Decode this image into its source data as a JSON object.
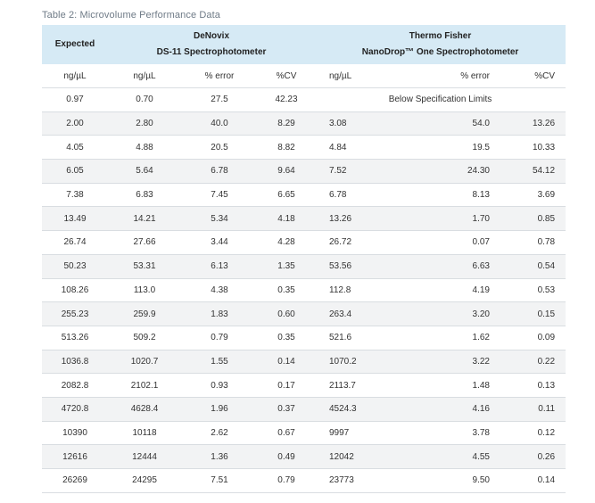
{
  "caption": "Table 2: Microvolume Performance Data",
  "header": {
    "expected": "Expected",
    "denovix_line1": "DeNovix",
    "denovix_line2": "DS-11 Spectrophotometer",
    "thermo_line1": "Thermo Fisher",
    "thermo_line2": "NanoDrop™ One Spectrophotometer"
  },
  "units": [
    "ng/µL",
    "ng/µL",
    "% error",
    "%CV",
    "ng/µL",
    "% error",
    "%CV"
  ],
  "below_spec_text": "Below Specification Limits",
  "rows": [
    {
      "expected": "0.97",
      "dn_ngul": "0.70",
      "dn_err": "27.5",
      "dn_cv": "42.23",
      "below_spec": true
    },
    {
      "expected": "2.00",
      "dn_ngul": "2.80",
      "dn_err": "40.0",
      "dn_cv": "8.29",
      "tf_ngul": "3.08",
      "tf_err": "54.0",
      "tf_cv": "13.26"
    },
    {
      "expected": "4.05",
      "dn_ngul": "4.88",
      "dn_err": "20.5",
      "dn_cv": "8.82",
      "tf_ngul": "4.84",
      "tf_err": "19.5",
      "tf_cv": "10.33"
    },
    {
      "expected": "6.05",
      "dn_ngul": "5.64",
      "dn_err": "6.78",
      "dn_cv": "9.64",
      "tf_ngul": "7.52",
      "tf_err": "24.30",
      "tf_cv": "54.12"
    },
    {
      "expected": "7.38",
      "dn_ngul": "6.83",
      "dn_err": "7.45",
      "dn_cv": "6.65",
      "tf_ngul": "6.78",
      "tf_err": "8.13",
      "tf_cv": "3.69"
    },
    {
      "expected": "13.49",
      "dn_ngul": "14.21",
      "dn_err": "5.34",
      "dn_cv": "4.18",
      "tf_ngul": "13.26",
      "tf_err": "1.70",
      "tf_cv": "0.85"
    },
    {
      "expected": "26.74",
      "dn_ngul": "27.66",
      "dn_err": "3.44",
      "dn_cv": "4.28",
      "tf_ngul": "26.72",
      "tf_err": "0.07",
      "tf_cv": "0.78"
    },
    {
      "expected": "50.23",
      "dn_ngul": "53.31",
      "dn_err": "6.13",
      "dn_cv": "1.35",
      "tf_ngul": "53.56",
      "tf_err": "6.63",
      "tf_cv": "0.54"
    },
    {
      "expected": "108.26",
      "dn_ngul": "113.0",
      "dn_err": "4.38",
      "dn_cv": "0.35",
      "tf_ngul": "112.8",
      "tf_err": "4.19",
      "tf_cv": "0.53"
    },
    {
      "expected": "255.23",
      "dn_ngul": "259.9",
      "dn_err": "1.83",
      "dn_cv": "0.60",
      "tf_ngul": "263.4",
      "tf_err": "3.20",
      "tf_cv": "0.15"
    },
    {
      "expected": "513.26",
      "dn_ngul": "509.2",
      "dn_err": "0.79",
      "dn_cv": "0.35",
      "tf_ngul": "521.6",
      "tf_err": "1.62",
      "tf_cv": "0.09"
    },
    {
      "expected": "1036.8",
      "dn_ngul": "1020.7",
      "dn_err": "1.55",
      "dn_cv": "0.14",
      "tf_ngul": "1070.2",
      "tf_err": "3.22",
      "tf_cv": "0.22"
    },
    {
      "expected": "2082.8",
      "dn_ngul": "2102.1",
      "dn_err": "0.93",
      "dn_cv": "0.17",
      "tf_ngul": "2113.7",
      "tf_err": "1.48",
      "tf_cv": "0.13"
    },
    {
      "expected": "4720.8",
      "dn_ngul": "4628.4",
      "dn_err": "1.96",
      "dn_cv": "0.37",
      "tf_ngul": "4524.3",
      "tf_err": "4.16",
      "tf_cv": "0.11"
    },
    {
      "expected": "10390",
      "dn_ngul": "10118",
      "dn_err": "2.62",
      "dn_cv": "0.67",
      "tf_ngul": "9997",
      "tf_err": "3.78",
      "tf_cv": "0.12"
    },
    {
      "expected": "12616",
      "dn_ngul": "12444",
      "dn_err": "1.36",
      "dn_cv": "0.49",
      "tf_ngul": "12042",
      "tf_err": "4.55",
      "tf_cv": "0.26"
    },
    {
      "expected": "26269",
      "dn_ngul": "24295",
      "dn_err": "7.51",
      "dn_cv": "0.79",
      "tf_ngul": "23773",
      "tf_err": "9.50",
      "tf_cv": "0.14"
    }
  ],
  "colors": {
    "header_bg": "#d6eaf5",
    "stripe_bg": "#f2f3f4",
    "caption": "#6f7b87",
    "rule": "#d9dde1"
  }
}
